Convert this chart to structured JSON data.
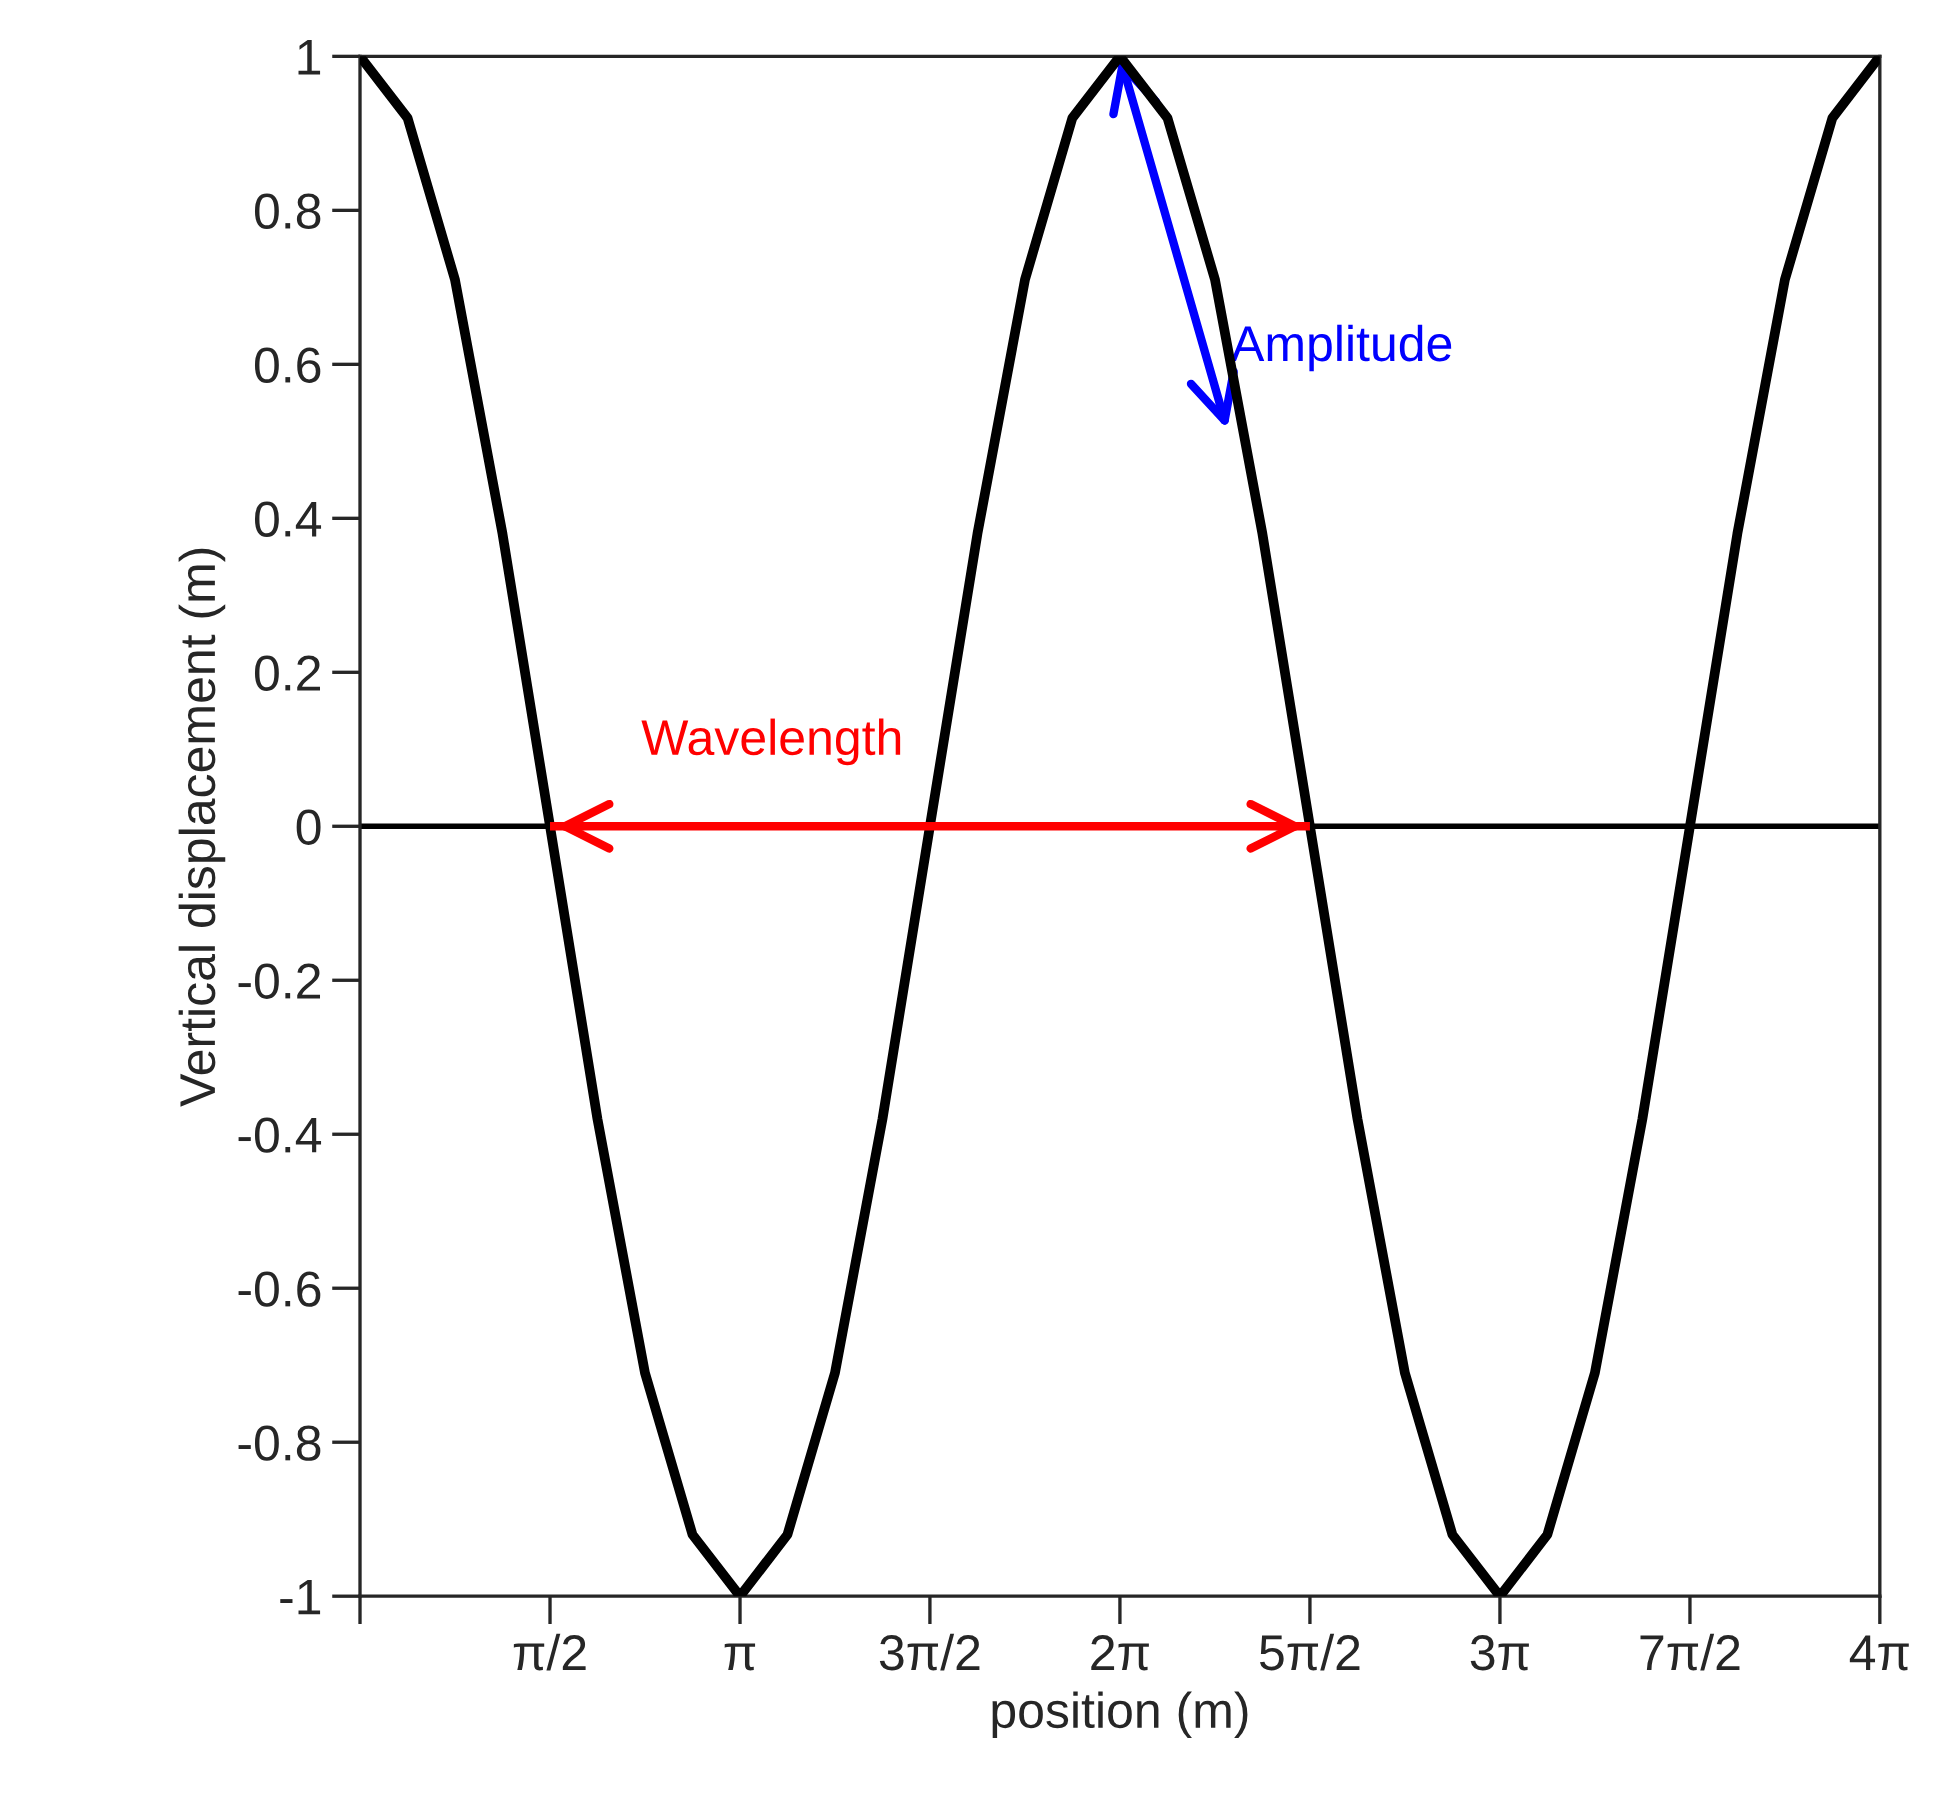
{
  "chart_data": {
    "type": "line",
    "xlabel": "position (m)",
    "ylabel": "Vertical displacement (m)",
    "xlim": [
      0,
      12.566
    ],
    "ylim": [
      -1,
      1
    ],
    "xticks": [
      {
        "value": 0,
        "label": null
      },
      {
        "value": 1.571,
        "label": "π/2"
      },
      {
        "value": 3.142,
        "label": "π"
      },
      {
        "value": 4.712,
        "label": "3π/2"
      },
      {
        "value": 6.283,
        "label": "2π"
      },
      {
        "value": 7.854,
        "label": "5π/2"
      },
      {
        "value": 9.425,
        "label": "3π"
      },
      {
        "value": 10.996,
        "label": "7π/2"
      },
      {
        "value": 12.566,
        "label": "4π"
      }
    ],
    "yticks": [
      -1,
      -0.8,
      -0.6,
      -0.4,
      -0.2,
      0,
      0.2,
      0.4,
      0.6,
      0.8,
      1
    ],
    "grid": false,
    "legend": false,
    "ref_lines": [
      {
        "axis": "y",
        "value": 0,
        "color": "#000000"
      }
    ],
    "series": [
      {
        "color": "#000000",
        "x": [
          0,
          0.393,
          0.785,
          1.178,
          1.571,
          1.963,
          2.356,
          2.749,
          3.142,
          3.534,
          3.927,
          4.32,
          4.712,
          5.105,
          5.498,
          5.89,
          6.283,
          6.676,
          7.069,
          7.461,
          7.854,
          8.247,
          8.639,
          9.032,
          9.425,
          9.817,
          10.21,
          10.603,
          10.996,
          11.388,
          11.781,
          12.174,
          12.566
        ],
        "values": [
          1,
          0.92,
          0.71,
          0.38,
          0,
          -0.38,
          -0.71,
          -0.92,
          -1,
          -0.92,
          -0.71,
          -0.38,
          0,
          0.38,
          0.71,
          0.92,
          1,
          0.92,
          0.71,
          0.38,
          0,
          -0.38,
          -0.71,
          -0.92,
          -1,
          -0.92,
          -0.71,
          -0.38,
          0,
          0.38,
          0.71,
          0.92,
          1
        ]
      },
      {
        "name": "Wavelength",
        "color": "#ff0000",
        "x": [
          1.571,
          7.854
        ],
        "values": [
          0,
          0
        ]
      }
    ],
    "annotations": [
      {
        "text": "Amplitude",
        "x": 6.283,
        "y": 1
      }
    ]
  }
}
